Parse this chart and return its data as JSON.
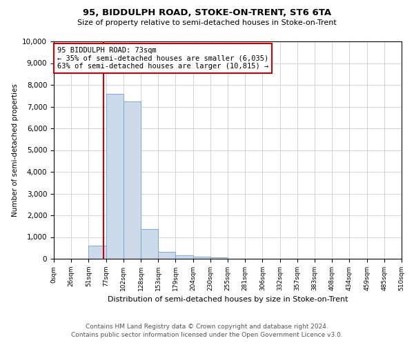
{
  "title": "95, BIDDULPH ROAD, STOKE-ON-TRENT, ST6 6TA",
  "subtitle": "Size of property relative to semi-detached houses in Stoke-on-Trent",
  "xlabel": "Distribution of semi-detached houses by size in Stoke-on-Trent",
  "ylabel": "Number of semi-detached properties",
  "property_size": 73,
  "annotation_title": "95 BIDDULPH ROAD: 73sqm",
  "annotation_line1": "← 35% of semi-detached houses are smaller (6,035)",
  "annotation_line2": "63% of semi-detached houses are larger (10,815) →",
  "footer_line1": "Contains HM Land Registry data © Crown copyright and database right 2024.",
  "footer_line2": "Contains public sector information licensed under the Open Government Licence v3.0.",
  "bin_edges": [
    0,
    25.5,
    51,
    76.5,
    102,
    127.5,
    153,
    178.5,
    204,
    229.5,
    255,
    280.5,
    306,
    331.5,
    357,
    382.5,
    408,
    433.5,
    459,
    484.5,
    510
  ],
  "bin_labels": [
    "0sqm",
    "26sqm",
    "51sqm",
    "77sqm",
    "102sqm",
    "128sqm",
    "153sqm",
    "179sqm",
    "204sqm",
    "230sqm",
    "255sqm",
    "281sqm",
    "306sqm",
    "332sqm",
    "357sqm",
    "383sqm",
    "408sqm",
    "434sqm",
    "459sqm",
    "485sqm",
    "510sqm"
  ],
  "bar_heights": [
    0,
    0,
    600,
    7600,
    7250,
    1350,
    325,
    150,
    100,
    60,
    0,
    0,
    0,
    0,
    0,
    0,
    0,
    0,
    0,
    0
  ],
  "bar_color": "#ccdaeb",
  "bar_edge_color": "#7aa8cc",
  "vline_color": "#cc0000",
  "annotation_box_color": "#cc0000",
  "ylim": [
    0,
    10000
  ],
  "yticks": [
    0,
    1000,
    2000,
    3000,
    4000,
    5000,
    6000,
    7000,
    8000,
    9000,
    10000
  ],
  "grid_color": "#cccccc",
  "background_color": "#ffffff"
}
